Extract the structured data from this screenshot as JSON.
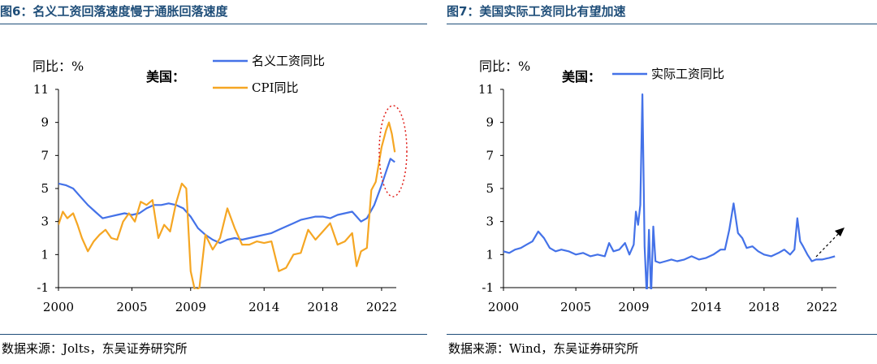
{
  "left": {
    "figure_title": "图6：名义工资回落速度慢于通胀回落速度",
    "source": "数据来源：Jolts，东吴证券研究所"
  },
  "right": {
    "figure_title": "图7：美国实际工资同比有望加速",
    "source": "数据来源：Wind，东吴证券研究所"
  },
  "colors": {
    "title": "#1f4e79",
    "blue": "#4472e8",
    "orange": "#f5a623",
    "annotation": "#e0201b"
  },
  "chart_data": [
    {
      "type": "line",
      "title": "图6：名义工资回落速度慢于通胀回落速度",
      "ylabel": "同比：%",
      "region_label": "美国：",
      "ylim": [
        -1,
        11
      ],
      "yticks": [
        "-1",
        "1",
        "3",
        "5",
        "7",
        "9",
        "11"
      ],
      "xlim": [
        2000,
        2023
      ],
      "xticks": [
        "2000",
        "2005",
        "2009",
        "2014",
        "2018",
        "2022"
      ],
      "annotation": "red dotted ellipse around 2022 peak",
      "series": [
        {
          "name": "名义工资同比",
          "color": "#4472e8",
          "x": [
            2000.0,
            2000.5,
            2001.0,
            2001.5,
            2002.0,
            2002.5,
            2003.0,
            2003.5,
            2004.0,
            2004.5,
            2005.0,
            2005.5,
            2006.0,
            2006.5,
            2007.0,
            2007.5,
            2008.0,
            2008.5,
            2009.0,
            2009.5,
            2010.0,
            2010.5,
            2011.0,
            2011.5,
            2012.0,
            2012.5,
            2013.0,
            2013.5,
            2014.0,
            2014.5,
            2015.0,
            2015.5,
            2016.0,
            2016.5,
            2017.0,
            2017.5,
            2018.0,
            2018.5,
            2019.0,
            2019.5,
            2020.0,
            2020.3,
            2020.6,
            2021.0,
            2021.5,
            2022.0,
            2022.3,
            2022.6,
            2022.9
          ],
          "values": [
            5.3,
            5.2,
            5.0,
            4.5,
            4.0,
            3.6,
            3.2,
            3.3,
            3.4,
            3.5,
            3.4,
            3.5,
            3.8,
            4.0,
            4.0,
            4.1,
            4.0,
            3.8,
            3.3,
            2.6,
            2.2,
            1.9,
            1.7,
            1.9,
            2.0,
            1.9,
            2.0,
            2.1,
            2.2,
            2.3,
            2.5,
            2.7,
            2.9,
            3.1,
            3.2,
            3.3,
            3.3,
            3.2,
            3.4,
            3.5,
            3.6,
            3.3,
            3.0,
            3.2,
            4.0,
            5.2,
            6.0,
            6.8,
            6.6
          ]
        },
        {
          "name": "CPI同比",
          "color": "#f5a623",
          "x": [
            2000.0,
            2000.3,
            2000.6,
            2001.0,
            2001.3,
            2001.6,
            2002.0,
            2002.4,
            2002.8,
            2003.2,
            2003.6,
            2004.0,
            2004.4,
            2004.8,
            2005.2,
            2005.6,
            2006.0,
            2006.4,
            2006.8,
            2007.2,
            2007.6,
            2008.0,
            2008.4,
            2008.7,
            2009.0,
            2009.3,
            2009.6,
            2010.0,
            2010.5,
            2011.0,
            2011.5,
            2012.0,
            2012.5,
            2013.0,
            2013.5,
            2014.0,
            2014.5,
            2015.0,
            2015.5,
            2016.0,
            2016.5,
            2017.0,
            2017.5,
            2018.0,
            2018.5,
            2019.0,
            2019.5,
            2020.0,
            2020.3,
            2020.6,
            2021.0,
            2021.3,
            2021.6,
            2022.0,
            2022.3,
            2022.5,
            2022.7,
            2022.9
          ],
          "values": [
            2.8,
            3.6,
            3.2,
            3.5,
            2.8,
            2.0,
            1.2,
            1.8,
            2.2,
            2.5,
            2.0,
            1.9,
            3.0,
            3.5,
            3.0,
            4.2,
            4.0,
            4.3,
            2.0,
            2.8,
            2.4,
            4.1,
            5.3,
            5.0,
            0.0,
            -1.2,
            -1.0,
            2.2,
            1.3,
            2.0,
            3.8,
            2.6,
            1.6,
            1.6,
            1.8,
            1.7,
            1.8,
            0.0,
            0.2,
            1.0,
            1.1,
            2.5,
            1.9,
            2.4,
            2.9,
            1.6,
            1.8,
            2.3,
            0.3,
            1.2,
            1.4,
            4.9,
            5.4,
            7.5,
            8.5,
            9.0,
            8.3,
            7.2
          ]
        }
      ]
    },
    {
      "type": "line",
      "title": "图7：美国实际工资同比有望加速",
      "ylabel": "同比：%",
      "region_label": "美国：",
      "ylim": [
        -1,
        11
      ],
      "yticks": [
        "-1",
        "1",
        "3",
        "5",
        "7",
        "9",
        "11"
      ],
      "xlim": [
        2000,
        2023
      ],
      "xticks": [
        "2000",
        "2005",
        "2009",
        "2014",
        "2018",
        "2022"
      ],
      "annotation": "dashed arrow pointing up-right after 2021",
      "series": [
        {
          "name": "实际工资同比",
          "color": "#4472e8",
          "x": [
            2000.0,
            2000.4,
            2000.8,
            2001.2,
            2001.6,
            2002.0,
            2002.4,
            2002.8,
            2003.2,
            2003.6,
            2004.0,
            2004.5,
            2005.0,
            2005.5,
            2006.0,
            2006.5,
            2007.0,
            2007.3,
            2007.6,
            2008.0,
            2008.4,
            2008.7,
            2009.0,
            2009.15,
            2009.3,
            2009.45,
            2009.6,
            2009.75,
            2009.9,
            2010.05,
            2010.2,
            2010.35,
            2010.5,
            2010.8,
            2011.2,
            2011.6,
            2012.0,
            2012.5,
            2013.0,
            2013.5,
            2014.0,
            2014.5,
            2015.0,
            2015.3,
            2015.6,
            2015.9,
            2016.2,
            2016.5,
            2016.8,
            2017.2,
            2017.6,
            2018.0,
            2018.5,
            2019.0,
            2019.4,
            2019.8,
            2020.1,
            2020.3,
            2020.5,
            2020.7,
            2021.0,
            2021.3,
            2021.6,
            2022.0,
            2022.5,
            2022.9
          ],
          "values": [
            1.2,
            1.1,
            1.3,
            1.4,
            1.6,
            1.8,
            2.4,
            2.0,
            1.4,
            1.2,
            1.3,
            1.2,
            1.0,
            1.1,
            0.9,
            1.0,
            0.9,
            1.7,
            1.2,
            1.3,
            1.7,
            1.0,
            1.6,
            3.6,
            2.8,
            4.0,
            10.7,
            1.5,
            -1.5,
            2.5,
            -1.5,
            2.7,
            0.6,
            0.5,
            0.6,
            0.7,
            0.6,
            0.7,
            0.9,
            0.7,
            0.8,
            1.0,
            1.3,
            1.3,
            2.5,
            4.1,
            2.3,
            2.0,
            1.4,
            1.5,
            1.2,
            1.0,
            0.9,
            1.1,
            1.3,
            1.0,
            1.3,
            3.2,
            1.8,
            1.5,
            1.0,
            0.6,
            0.7,
            0.7,
            0.8,
            0.9
          ]
        }
      ]
    }
  ]
}
